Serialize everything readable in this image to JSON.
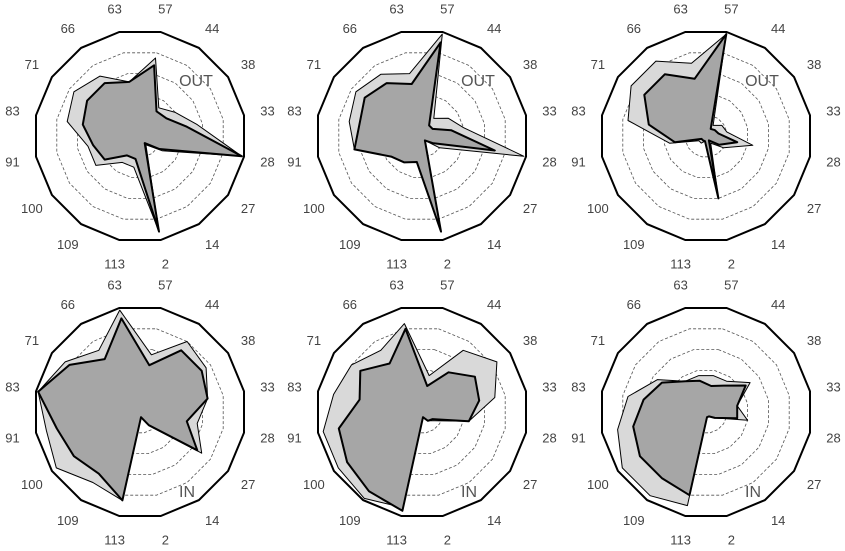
{
  "colors": {
    "outer_fill": "#d9d9d9",
    "inner_fill": "#a6a6a6",
    "outline": "#000000",
    "grid": "#555555"
  },
  "chart_data": {
    "type": "radar",
    "grid": true,
    "grid_style": "dashed",
    "frame_shape": "polygon",
    "rlim": [
      0,
      1
    ],
    "rings": [
      0.2,
      0.4,
      0.6,
      0.8
    ],
    "categories": [
      "57",
      "44",
      "38",
      "33",
      "28",
      "27",
      "14",
      "2",
      "113",
      "109",
      "100",
      "91",
      "83",
      "71",
      "66",
      "63"
    ],
    "panels": [
      {
        "label": "OUT",
        "label_position": "upper-right",
        "series": [
          {
            "role": "outer-shaded",
            "values": [
              0.75,
              0.32,
              0.4,
              0.55,
              0.98,
              0.25,
              0.1,
              0.92,
              0.3,
              0.3,
              0.5,
              0.5,
              0.7,
              0.75,
              0.68,
              0.52
            ]
          },
          {
            "role": "inner-dark",
            "values": [
              0.68,
              0.28,
              0.3,
              0.45,
              0.98,
              0.22,
              0.08,
              0.92,
              0.22,
              0.22,
              0.4,
              0.45,
              0.55,
              0.6,
              0.6,
              0.52
            ]
          }
        ]
      },
      {
        "label": "OUT",
        "label_position": "upper-right",
        "series": [
          {
            "role": "outer-shaded",
            "values": [
              0.98,
              0.2,
              0.3,
              0.4,
              0.98,
              0.2,
              0.05,
              0.92,
              0.2,
              0.22,
              0.35,
              0.65,
              0.7,
              0.75,
              0.7,
              0.6
            ]
          },
          {
            "role": "inner-dark",
            "values": [
              0.9,
              0.12,
              0.12,
              0.28,
              0.7,
              0.12,
              0.05,
              0.92,
              0.25,
              0.3,
              0.35,
              0.65,
              0.6,
              0.65,
              0.6,
              0.5
            ]
          }
        ]
      },
      {
        "label": "OUT",
        "label_position": "upper-right",
        "series": [
          {
            "role": "outer-shaded",
            "values": [
              0.98,
              0.12,
              0.18,
              0.2,
              0.45,
              0.2,
              0.08,
              0.6,
              0.05,
              0.08,
              0.08,
              0.35,
              0.75,
              0.85,
              0.85,
              0.7
            ]
          },
          {
            "role": "inner-dark",
            "values": [
              0.98,
              0.08,
              0.1,
              0.12,
              0.3,
              0.15,
              0.05,
              0.6,
              0.05,
              0.05,
              0.05,
              0.3,
              0.55,
              0.7,
              0.7,
              0.55
            ]
          }
        ]
      },
      {
        "label": "IN",
        "label_position": "lower-right",
        "series": [
          {
            "role": "outer-shaded",
            "values": [
              0.55,
              0.8,
              0.75,
              0.65,
              0.55,
              0.7,
              0.15,
              0.05,
              0.85,
              0.8,
              0.95,
              0.9,
              0.98,
              0.85,
              0.7,
              0.98
            ]
          },
          {
            "role": "inner-dark",
            "values": [
              0.45,
              0.7,
              0.7,
              0.65,
              0.45,
              0.65,
              0.15,
              0.05,
              0.85,
              0.7,
              0.75,
              0.8,
              0.98,
              0.8,
              0.6,
              0.9
            ]
          }
        ]
      },
      {
        "label": "IN",
        "label_position": "lower-right",
        "series": [
          {
            "role": "outer-shaded",
            "values": [
              0.35,
              0.7,
              0.85,
              0.7,
              0.45,
              0.15,
              0.1,
              0.05,
              0.92,
              0.98,
              0.95,
              0.95,
              0.85,
              0.8,
              0.7,
              0.85
            ]
          },
          {
            "role": "inner-dark",
            "values": [
              0.25,
              0.45,
              0.6,
              0.55,
              0.45,
              0.12,
              0.1,
              0.05,
              0.95,
              0.9,
              0.85,
              0.8,
              0.6,
              0.7,
              0.55,
              0.8
            ]
          }
        ]
      },
      {
        "label": "IN",
        "label_position": "lower-right",
        "series": [
          {
            "role": "outer-shaded",
            "values": [
              0.35,
              0.35,
              0.5,
              0.3,
              0.4,
              0.1,
              0.05,
              0.05,
              0.9,
              0.95,
              0.95,
              0.85,
              0.75,
              0.55,
              0.35,
              0.35
            ]
          },
          {
            "role": "inner-dark",
            "values": [
              0.25,
              0.3,
              0.45,
              0.3,
              0.3,
              0.1,
              0.05,
              0.05,
              0.8,
              0.75,
              0.75,
              0.7,
              0.6,
              0.5,
              0.35,
              0.3
            ]
          }
        ]
      }
    ]
  }
}
